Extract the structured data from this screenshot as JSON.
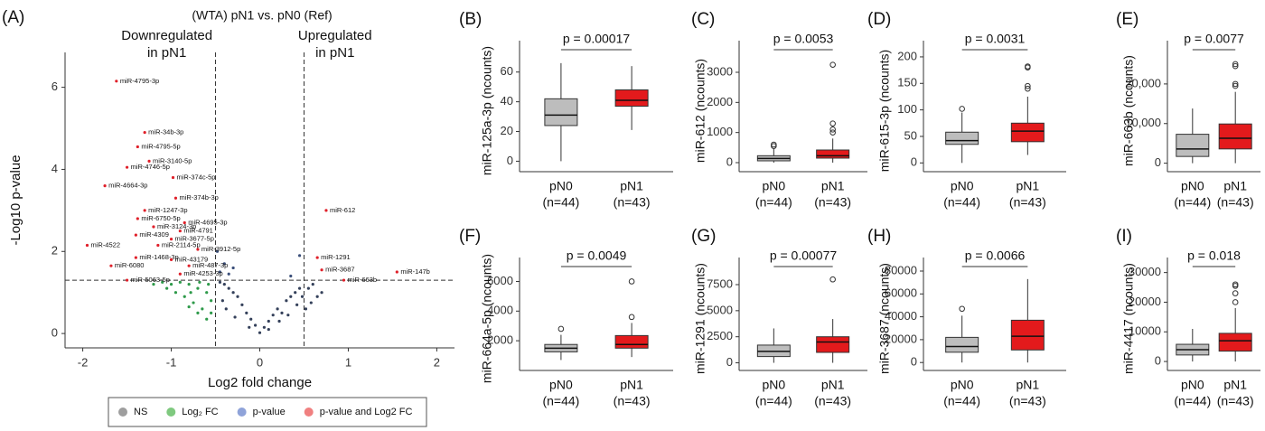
{
  "chart_data": [
    {
      "type": "scatter",
      "panel": "(A)",
      "title": "(WTA) pN1 vs. pN0 (Ref)",
      "annotations": [
        {
          "lines": [
            "Downregulated",
            "in pN1"
          ],
          "x": -1.05
        },
        {
          "lines": [
            "Upregulated",
            "in pN1"
          ],
          "x": 0.85
        }
      ],
      "xlabel": "Log2 fold change",
      "ylabel": "-Log10 p-value",
      "xlim": [
        -2.2,
        2.2
      ],
      "ylim": [
        -0.35,
        6.85
      ],
      "xticks": [
        -2,
        -1,
        0,
        1,
        2
      ],
      "yticks": [
        0,
        2,
        4,
        6
      ],
      "thresholds": {
        "x": [
          -0.5,
          0.5
        ],
        "y": 1.3
      },
      "legend": "bottom",
      "series": [
        {
          "name": "NS",
          "color": "#34405a",
          "legend_color": "#9e9e9e",
          "x": [
            0,
            0.05,
            -0.05,
            0.1,
            -0.1,
            0.15,
            -0.15,
            0.2,
            -0.2,
            0.25,
            -0.25,
            0.3,
            -0.3,
            0.35,
            -0.35,
            0.4,
            -0.4,
            0.45,
            -0.45,
            0.1,
            -0.12,
            0.22,
            -0.28,
            0.32,
            -0.38,
            0.42,
            -0.42,
            0.48,
            0.55,
            0.6,
            0.65,
            0.7,
            0.52,
            0.58
          ],
          "y": [
            0.02,
            0.15,
            0.2,
            0.3,
            0.35,
            0.45,
            0.5,
            0.6,
            0.7,
            0.5,
            0.9,
            0.8,
            1.0,
            0.9,
            1.1,
            1.0,
            1.2,
            1.1,
            1.25,
            0.1,
            0.15,
            0.3,
            0.4,
            0.45,
            0.6,
            0.7,
            0.8,
            0.9,
            1.1,
            1.2,
            0.9,
            1.0,
            0.6,
            0.75
          ]
        },
        {
          "name": "Log₂ FC",
          "color": "#2e9a4a",
          "legend_color": "#7fc97f",
          "x": [
            -0.55,
            -0.6,
            -0.7,
            -0.8,
            -0.9,
            -1.0,
            -1.1,
            -0.65,
            -0.75,
            -0.85,
            -0.95,
            -1.05,
            -0.55,
            -0.6,
            -0.7,
            -0.8,
            -1.2,
            -0.58,
            -0.68,
            -0.78
          ],
          "y": [
            0.8,
            1.0,
            1.1,
            1.2,
            1.25,
            1.2,
            1.25,
            0.6,
            0.75,
            0.9,
            1.0,
            1.1,
            0.5,
            0.35,
            0.5,
            0.65,
            1.2,
            1.2,
            1.25,
            1.0
          ]
        },
        {
          "name": "p-value",
          "color": "#3b4f7a",
          "legend_color": "#8fa3d9",
          "x": [
            -0.45,
            -0.4,
            -0.35,
            -0.3,
            0.35,
            0.45,
            -0.48
          ],
          "y": [
            1.5,
            1.7,
            1.45,
            1.6,
            1.4,
            1.9,
            2.0
          ]
        },
        {
          "name": "p-value and Log2 FC",
          "color": "#e0202a",
          "legend_color": "#f08080",
          "x": [
            -1.62,
            -1.3,
            -1.38,
            -1.25,
            -1.5,
            -0.98,
            -1.75,
            -0.95,
            -1.3,
            -1.38,
            -0.85,
            -1.2,
            -0.9,
            -1.4,
            -1.0,
            -1.95,
            -1.15,
            -0.7,
            -1.4,
            -1.0,
            -1.68,
            -0.8,
            -0.9,
            -1.5,
            0.75,
            0.65,
            0.7,
            1.55,
            0.95
          ],
          "y": [
            6.15,
            4.9,
            4.55,
            4.2,
            4.05,
            3.8,
            3.6,
            3.3,
            3.0,
            2.8,
            2.7,
            2.6,
            2.5,
            2.4,
            2.3,
            2.15,
            2.15,
            2.05,
            1.85,
            1.8,
            1.65,
            1.65,
            1.45,
            1.3,
            3.0,
            1.85,
            1.55,
            1.5,
            1.3
          ],
          "labels": [
            "miR-4795-3p",
            "miR-34b-3p",
            "miR-4795-5p",
            "miR-3140-5p",
            "miR-4746-5p",
            "miR-374c-5p",
            "miR-4664-3p",
            "miR-374b-3p",
            "miR-1247-3p",
            "miR-6750-5p",
            "miR-4695-3p",
            "miR-3124-3p",
            "miR-4791",
            "miR-4309",
            "miR-3677-5p",
            "miR-4522",
            "miR-2114-5p",
            "miR-3912-5p",
            "miR-1468-3p",
            "miR-43179",
            "miR-6080",
            "miR-487-3p",
            "miR-4253-3p",
            "miR-5063-5p",
            "miR-612",
            "miR-1291",
            "miR-3687",
            "miR-147b",
            "miR-663b"
          ]
        }
      ]
    },
    {
      "type": "box",
      "panel": "(B)",
      "ylabel": "miR-125a-3p (ncounts)",
      "annotation": "p = 0.00017",
      "categories": [
        "pN0",
        "pN1"
      ],
      "sublabels": [
        "(n=44)",
        "(n=43)"
      ],
      "colors": [
        "#bdbdbd",
        "#e31a1c"
      ],
      "ylim": [
        -4,
        72
      ],
      "yticks": [
        0,
        20,
        40,
        60
      ],
      "boxes": [
        {
          "min": 0,
          "q1": 24,
          "median": 31,
          "q3": 42,
          "max": 66,
          "outliers": []
        },
        {
          "min": 21,
          "q1": 37,
          "median": 41,
          "q3": 48,
          "max": 64,
          "outliers": []
        }
      ]
    },
    {
      "type": "box",
      "panel": "(C)",
      "ylabel": "miR-612 (ncounts)",
      "annotation": "p = 0.0053",
      "categories": [
        "pN0",
        "pN1"
      ],
      "sublabels": [
        "(n=44)",
        "(n=43)"
      ],
      "colors": [
        "#bdbdbd",
        "#e31a1c"
      ],
      "ylim": [
        -150,
        3600
      ],
      "yticks": [
        0,
        1000,
        2000,
        3000
      ],
      "boxes": [
        {
          "min": 0,
          "q1": 60,
          "median": 140,
          "q3": 230,
          "max": 480,
          "outliers": [
            550,
            600
          ]
        },
        {
          "min": 0,
          "q1": 150,
          "median": 230,
          "q3": 420,
          "max": 800,
          "outliers": [
            1000,
            1100,
            1300,
            3250
          ]
        }
      ]
    },
    {
      "type": "box",
      "panel": "(D)",
      "ylabel": "miR-615-3p (ncounts)",
      "annotation": "p = 0.0031",
      "categories": [
        "pN0",
        "pN1"
      ],
      "sublabels": [
        "(n=44)",
        "(n=43)"
      ],
      "colors": [
        "#bdbdbd",
        "#e31a1c"
      ],
      "ylim": [
        -8,
        205
      ],
      "yticks": [
        0,
        50,
        100,
        150,
        200
      ],
      "boxes": [
        {
          "min": 0,
          "q1": 35,
          "median": 42,
          "q3": 58,
          "max": 95,
          "outliers": [
            102
          ]
        },
        {
          "min": 15,
          "q1": 40,
          "median": 60,
          "q3": 75,
          "max": 125,
          "outliers": [
            140,
            145,
            180,
            182
          ]
        }
      ]
    },
    {
      "type": "box",
      "panel": "(E)",
      "ylabel": "miR-663b (ncounts)",
      "annotation": "p = 0.0077",
      "categories": [
        "pN0",
        "pN1"
      ],
      "sublabels": [
        "(n=44)",
        "(n=43)"
      ],
      "colors": [
        "#bdbdbd",
        "#e31a1c"
      ],
      "ylim": [
        -1000,
        27500
      ],
      "yticks": [
        0,
        {
          "value": 10000,
          "label": "10,000"
        },
        {
          "value": 20000,
          "label": "20,000"
        }
      ],
      "boxes": [
        {
          "min": 0,
          "q1": 1700,
          "median": 3600,
          "q3": 7300,
          "max": 13800,
          "outliers": []
        },
        {
          "min": 0,
          "q1": 3600,
          "median": 6300,
          "q3": 9900,
          "max": 18000,
          "outliers": [
            19500,
            20000,
            24500,
            25000
          ]
        }
      ]
    },
    {
      "type": "box",
      "panel": "(F)",
      "ylabel": "miR-664a-5p (ncounts)",
      "annotation": "p = 0.0049",
      "categories": [
        "pN0",
        "pN1"
      ],
      "sublabels": [
        "(n=44)",
        "(n=43)"
      ],
      "colors": [
        "#bdbdbd",
        "#e31a1c"
      ],
      "ylim": [
        300,
        6700
      ],
      "yticks": [
        2000,
        4000,
        6000
      ],
      "boxes": [
        {
          "min": 700,
          "q1": 1250,
          "median": 1500,
          "q3": 1750,
          "max": 2400,
          "outliers": [
            2800
          ]
        },
        {
          "min": 900,
          "q1": 1500,
          "median": 1750,
          "q3": 2350,
          "max": 3200,
          "outliers": [
            3600,
            6000
          ]
        }
      ]
    },
    {
      "type": "box",
      "panel": "(G)",
      "ylabel": "miR-1291 (ncounts)",
      "annotation": "p = 0.00077",
      "categories": [
        "pN0",
        "pN1"
      ],
      "sublabels": [
        "(n=44)",
        "(n=43)"
      ],
      "colors": [
        "#bdbdbd",
        "#e31a1c"
      ],
      "ylim": [
        -300,
        8800
      ],
      "yticks": [
        0,
        2500,
        5000,
        7500
      ],
      "boxes": [
        {
          "min": 0,
          "q1": 600,
          "median": 1100,
          "q3": 1700,
          "max": 3300,
          "outliers": []
        },
        {
          "min": 0,
          "q1": 1000,
          "median": 2000,
          "q3": 2500,
          "max": 4200,
          "outliers": [
            8000
          ]
        }
      ]
    },
    {
      "type": "box",
      "panel": "(H)",
      "ylabel": "miR-3687 (ncounts)",
      "annotation": "p = 0.0066",
      "categories": [
        "pN0",
        "pN1"
      ],
      "sublabels": [
        "(n=44)",
        "(n=43)"
      ],
      "colors": [
        "#bdbdbd",
        "#e31a1c"
      ],
      "ylim": [
        -3000,
        80000
      ],
      "yticks": [
        0,
        20000,
        40000,
        60000,
        80000
      ],
      "boxes": [
        {
          "min": 0,
          "q1": 9000,
          "median": 14000,
          "q3": 22000,
          "max": 41000,
          "outliers": [
            47000
          ]
        },
        {
          "min": 0,
          "q1": 11000,
          "median": 23000,
          "q3": 37000,
          "max": 73000,
          "outliers": []
        }
      ]
    },
    {
      "type": "box",
      "panel": "(I)",
      "ylabel": "miR-4417 (ncounts)",
      "annotation": "p = 0.018",
      "categories": [
        "pN0",
        "pN1"
      ],
      "sublabels": [
        "(n=44)",
        "(n=43)"
      ],
      "colors": [
        "#bdbdbd",
        "#e31a1c"
      ],
      "ylim": [
        -1500,
        30500
      ],
      "yticks": [
        0,
        10000,
        20000,
        30000
      ],
      "boxes": [
        {
          "min": 0,
          "q1": 2200,
          "median": 4000,
          "q3": 5800,
          "max": 11000,
          "outliers": []
        },
        {
          "min": 0,
          "q1": 3500,
          "median": 7000,
          "q3": 9500,
          "max": 18000,
          "outliers": [
            20000,
            23000,
            25500,
            26000
          ]
        }
      ]
    }
  ]
}
